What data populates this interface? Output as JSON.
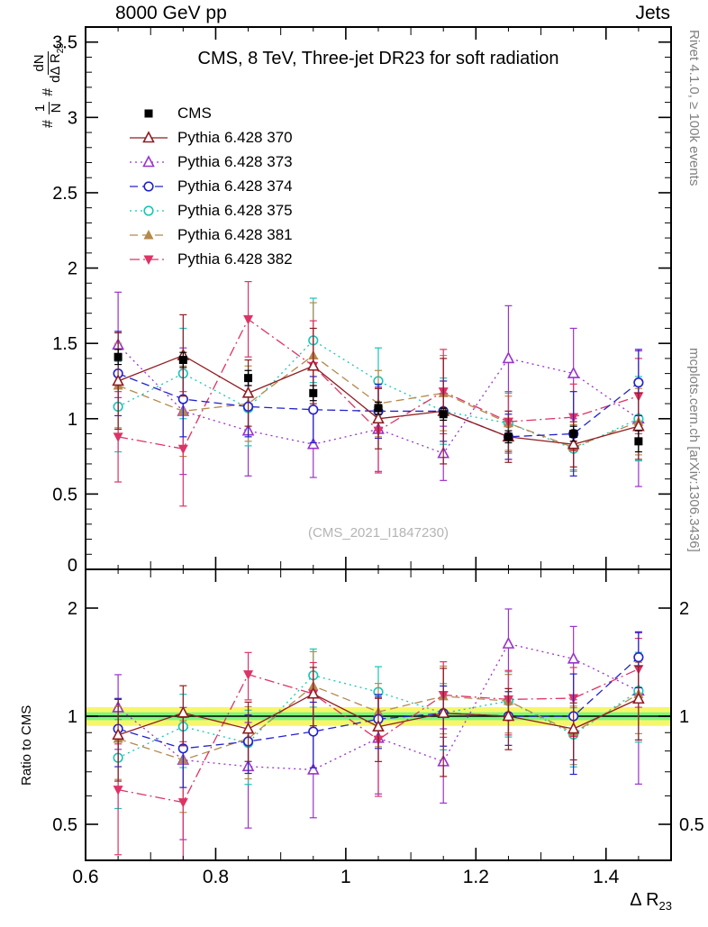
{
  "header": {
    "left": "8000 GeV pp",
    "right": "Jets"
  },
  "title": "CMS, 8 TeV, Three-jet DR23 for soft radiation",
  "watermark": "(CMS_2021_I1847230)",
  "side_notes": {
    "top": "Rivet 4.1.0, ≥ 100k events",
    "bottom": "mcplots.cern.ch [arXiv:1306.3436]"
  },
  "axis_labels": {
    "y_hash1": "#",
    "y_frac1_num": "1",
    "y_frac1_den": "N",
    "y_hash2": "#",
    "y_frac2_num": "dN",
    "y_frac2_den_main": "dΔ R",
    "y_frac2_den_sub": "23",
    "ratio": "Ratio to CMS",
    "x_main": "Δ R",
    "x_sub": "23"
  },
  "chart_data": {
    "type": "line",
    "x": [
      0.65,
      0.75,
      0.85,
      0.95,
      1.05,
      1.15,
      1.25,
      1.35,
      1.45
    ],
    "xlim": [
      0.6,
      1.5
    ],
    "xticks": [
      0.6,
      0.8,
      1.0,
      1.2,
      1.4
    ],
    "main_panel": {
      "ylim": [
        0,
        3.6
      ],
      "yticks": [
        0,
        0.5,
        1,
        1.5,
        2,
        2.5,
        3,
        3.5
      ],
      "grid": false
    },
    "ratio_panel": {
      "scale": "log",
      "ylim": [
        0.4,
        2.56
      ],
      "yticks": [
        0.5,
        1,
        2
      ],
      "minor_ticks": [
        0.4,
        0.6,
        0.7,
        0.8,
        0.9
      ],
      "band_yellow": [
        0.94,
        1.06
      ],
      "band_green": [
        0.975,
        1.025
      ],
      "band_yellow_color": "#f6f66a",
      "band_green_color": "#7df77d",
      "unity_line_color": "#000000"
    },
    "legend_position": "top-left",
    "series": [
      {
        "name": "CMS",
        "color": "#000000",
        "marker": "square-filled",
        "line": "none",
        "values": [
          1.41,
          1.39,
          1.27,
          1.17,
          1.07,
          1.03,
          0.88,
          0.9,
          0.85
        ],
        "errors": [
          0.05,
          0.05,
          0.05,
          0.05,
          0.04,
          0.04,
          0.04,
          0.05,
          0.07
        ]
      },
      {
        "name": "Pythia 6.428 370",
        "color": "#8f1d21",
        "marker": "triangle-open",
        "line": "solid",
        "values": [
          1.25,
          1.42,
          1.17,
          1.35,
          1.0,
          1.05,
          0.88,
          0.83,
          0.95
        ],
        "errors": [
          0.32,
          0.27,
          0.22,
          0.25,
          0.2,
          0.35,
          0.17,
          0.15,
          0.22
        ]
      },
      {
        "name": "Pythia 6.428 373",
        "color": "#9933cc",
        "marker": "triangle-open",
        "line": "dotted",
        "values": [
          1.49,
          1.05,
          0.92,
          0.83,
          0.93,
          0.77,
          1.4,
          1.3,
          1.0
        ],
        "errors": [
          0.35,
          0.42,
          0.3,
          0.22,
          0.28,
          0.18,
          0.35,
          0.3,
          0.45
        ]
      },
      {
        "name": "Pythia 6.428 374",
        "color": "#2222cc",
        "marker": "circle-open",
        "line": "dashed",
        "values": [
          1.3,
          1.13,
          1.08,
          1.06,
          1.05,
          1.05,
          0.88,
          0.9,
          1.24
        ],
        "errors": [
          0.28,
          0.25,
          0.2,
          0.22,
          0.18,
          0.2,
          0.15,
          0.28,
          0.22
        ]
      },
      {
        "name": "Pythia 6.428 375",
        "color": "#17c6b6",
        "marker": "circle-open",
        "line": "dotted",
        "values": [
          1.08,
          1.3,
          1.07,
          1.52,
          1.25,
          1.05,
          0.97,
          0.8,
          1.0
        ],
        "errors": [
          0.3,
          0.3,
          0.25,
          0.28,
          0.22,
          0.22,
          0.2,
          0.15,
          0.28
        ]
      },
      {
        "name": "Pythia 6.428 381",
        "color": "#b3894d",
        "marker": "triangle-filled",
        "line": "dashed",
        "values": [
          1.22,
          1.05,
          1.1,
          1.42,
          1.1,
          1.17,
          0.97,
          0.81,
          0.98
        ],
        "errors": [
          0.28,
          0.3,
          0.25,
          0.35,
          0.22,
          0.25,
          0.18,
          0.15,
          0.22
        ]
      },
      {
        "name": "Pythia 6.428 382",
        "color": "#dd3366",
        "marker": "triangle-down-filled",
        "line": "dashdot",
        "values": [
          0.88,
          0.8,
          1.66,
          1.35,
          0.92,
          1.18,
          0.98,
          1.01,
          1.15
        ],
        "errors": [
          0.3,
          0.38,
          0.25,
          0.3,
          0.28,
          0.28,
          0.2,
          0.22,
          0.25
        ]
      }
    ]
  }
}
